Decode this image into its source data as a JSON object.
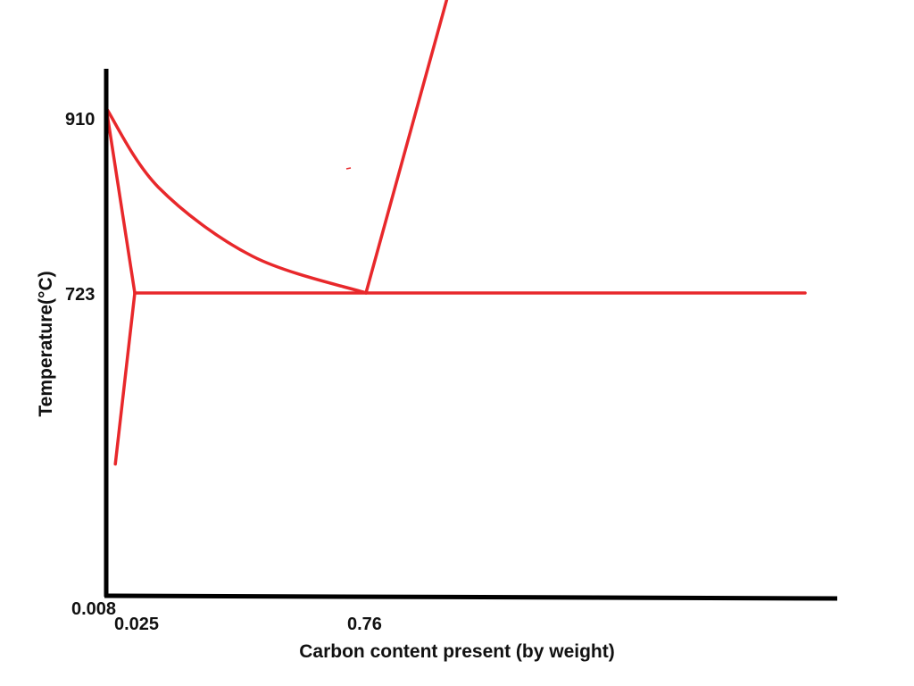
{
  "chart_data": {
    "type": "line",
    "xlabel": "Carbon content present (by weight)",
    "ylabel": "Temperature(°C)",
    "x_ticks": [
      "0.008",
      "0.025",
      "0.76"
    ],
    "y_ticks": [
      "910",
      "723"
    ],
    "colors": {
      "curve": "#e8282b",
      "axis": "#000000"
    },
    "grid": false,
    "series": [
      {
        "values": [
          {
            "x": 0.0,
            "y": 910
          },
          {
            "x": 0.025,
            "y": 723
          }
        ]
      },
      {
        "values": [
          {
            "x": 0.008,
            "y": 550
          },
          {
            "x": 0.025,
            "y": 723
          }
        ]
      },
      {
        "values": [
          {
            "x": 0.0,
            "y": 910
          },
          {
            "x": 0.1,
            "y": 830
          },
          {
            "x": 0.4,
            "y": 760
          },
          {
            "x": 0.76,
            "y": 723
          }
        ]
      },
      {
        "values": [
          {
            "x": 0.025,
            "y": 723
          },
          {
            "x": 2.0,
            "y": 723
          }
        ]
      },
      {
        "values": [
          {
            "x": 0.76,
            "y": 723
          },
          {
            "x": 1.0,
            "y": 1035
          }
        ]
      }
    ]
  }
}
